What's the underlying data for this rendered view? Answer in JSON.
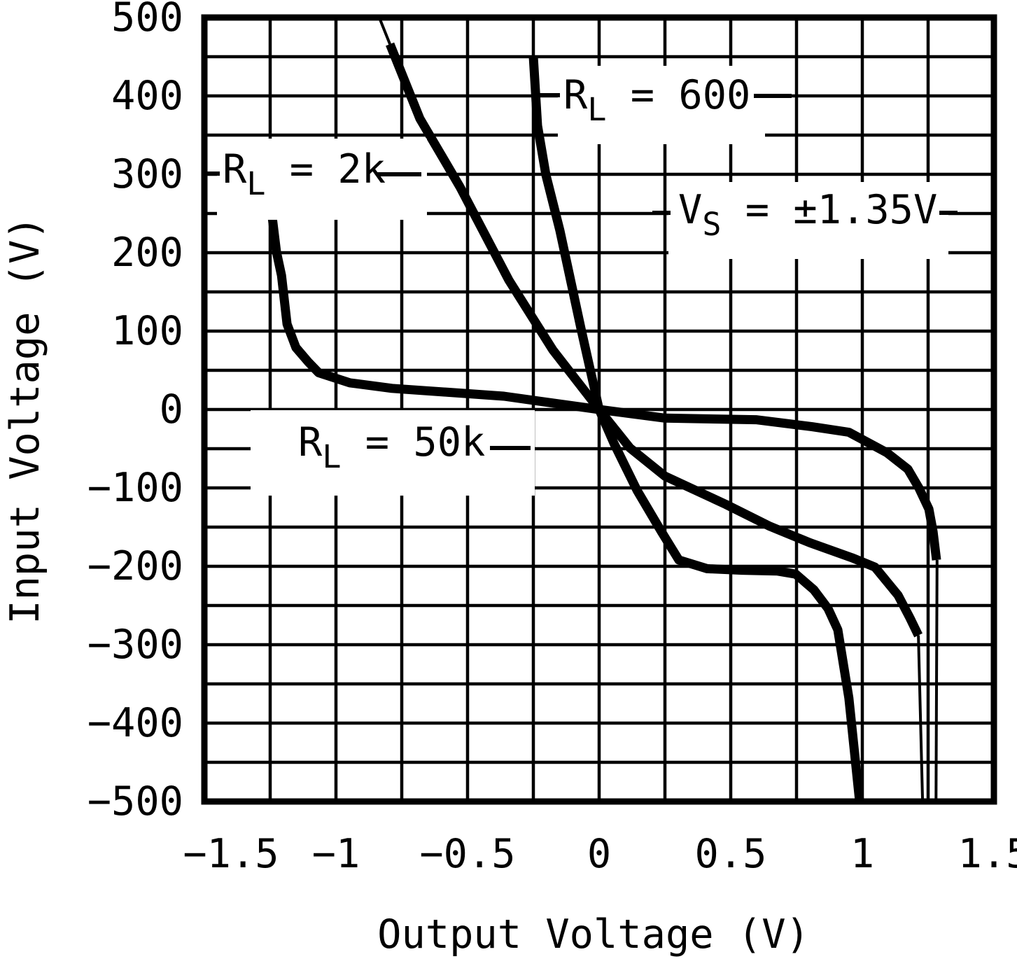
{
  "colors": {
    "line": "#000000",
    "background": "#ffffff"
  },
  "chart_data": {
    "type": "line",
    "xlabel": "Output Voltage (V)",
    "ylabel": "Input Voltage (V)",
    "xlim": [
      -1.5,
      1.5
    ],
    "ylim": [
      -500,
      500
    ],
    "x_grid_step": 0.25,
    "y_grid_step": 50,
    "grid": true,
    "x_ticks": [
      -1.5,
      -1,
      -0.5,
      0,
      0.5,
      1,
      1.5
    ],
    "x_tick_labels": [
      "−1.5",
      "−1",
      "−0.5",
      "0",
      "0.5",
      "1",
      "1.5"
    ],
    "y_ticks": [
      500,
      400,
      300,
      200,
      100,
      0,
      -100,
      -200,
      -300,
      -400,
      -500
    ],
    "y_tick_labels": [
      "500",
      "400",
      "300",
      "200",
      "100",
      "0",
      "−100",
      "−200",
      "−300",
      "−400",
      "−500"
    ],
    "series": [
      {
        "name": "RL = 600",
        "points": [
          [
            -0.25,
            450
          ],
          [
            -0.234,
            362
          ],
          [
            -0.202,
            299
          ],
          [
            -0.149,
            228
          ],
          [
            -0.069,
            103
          ],
          [
            0,
            0
          ],
          [
            0.056,
            -43
          ],
          [
            0.144,
            -103
          ],
          [
            0.237,
            -156
          ],
          [
            0.303,
            -192
          ],
          [
            0.41,
            -203
          ],
          [
            0.543,
            -205
          ],
          [
            0.676,
            -206
          ],
          [
            0.747,
            -210
          ],
          [
            0.816,
            -230
          ],
          [
            0.87,
            -254
          ],
          [
            0.907,
            -281
          ],
          [
            0.949,
            -368
          ],
          [
            0.989,
            -498
          ]
        ]
      },
      {
        "name": "RL = 2k",
        "lead_thin": [
          [
            -0.832,
            497
          ],
          [
            -0.795,
            466
          ]
        ],
        "points": [
          [
            -0.795,
            466
          ],
          [
            -0.681,
            371
          ],
          [
            -0.529,
            284
          ],
          [
            -0.343,
            165
          ],
          [
            -0.176,
            76
          ],
          [
            0,
            0
          ],
          [
            0.117,
            -49
          ],
          [
            0.25,
            -85
          ],
          [
            0.481,
            -121
          ],
          [
            0.649,
            -149
          ],
          [
            0.801,
            -170
          ],
          [
            0.96,
            -189
          ],
          [
            1.048,
            -201
          ],
          [
            1.136,
            -237
          ],
          [
            1.181,
            -266
          ],
          [
            1.213,
            -288
          ]
        ],
        "tail_thin": [
          [
            1.213,
            -288
          ],
          [
            1.229,
            -500
          ]
        ]
      },
      {
        "name": "RL = 50k",
        "points": [
          [
            -1.245,
            253
          ],
          [
            -1.226,
            201
          ],
          [
            -1.207,
            171
          ],
          [
            -1.186,
            109
          ],
          [
            -1.152,
            79
          ],
          [
            -1.106,
            61
          ],
          [
            -1.066,
            47
          ],
          [
            -0.947,
            34
          ],
          [
            -0.787,
            27
          ],
          [
            -0.574,
            22
          ],
          [
            -0.362,
            17
          ],
          [
            -0.149,
            7
          ],
          [
            0,
            0
          ],
          [
            0.25,
            -11
          ],
          [
            0.596,
            -13
          ],
          [
            0.809,
            -22
          ],
          [
            0.949,
            -29
          ],
          [
            1.093,
            -55
          ],
          [
            1.173,
            -76
          ],
          [
            1.215,
            -100
          ],
          [
            1.253,
            -127
          ],
          [
            1.269,
            -156
          ],
          [
            1.282,
            -192
          ]
        ],
        "tail_thin": [
          [
            1.284,
            -192
          ],
          [
            1.28,
            -500
          ]
        ]
      }
    ],
    "annotations": [
      {
        "id": "rl600",
        "pre": "R",
        "sub": "L",
        "post": " = 600"
      },
      {
        "id": "rl2k",
        "pre": "R",
        "sub": "L",
        "post": " = 2k"
      },
      {
        "id": "vs",
        "pre": "V",
        "sub": "S",
        "post": " = ±1.35V"
      },
      {
        "id": "rl50k",
        "pre": "R",
        "sub": "L",
        "post": " = 50k"
      }
    ]
  }
}
